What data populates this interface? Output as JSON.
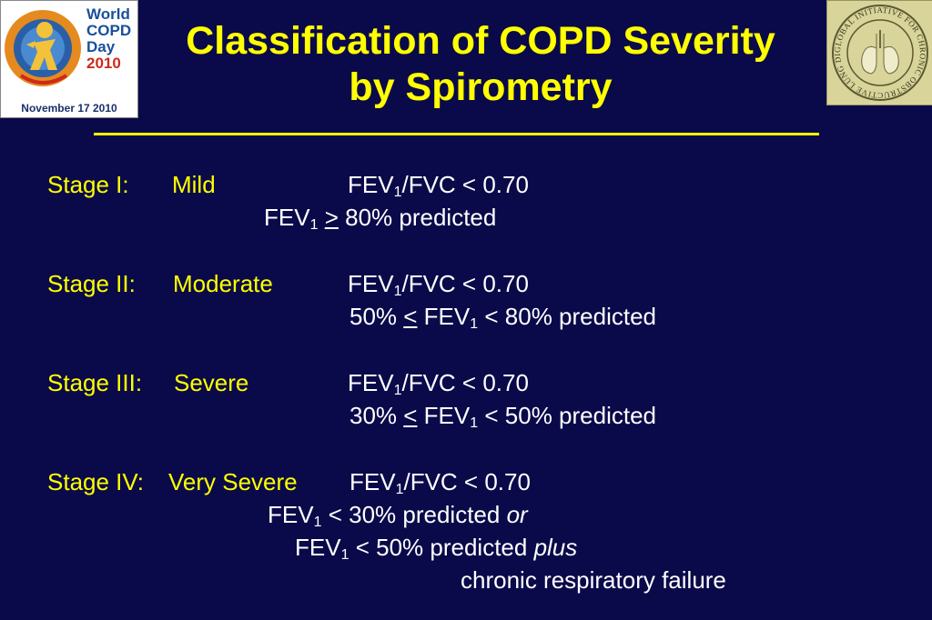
{
  "logo_left": {
    "line1": "World",
    "line2": "COPD",
    "line3": "Day",
    "year": "2010",
    "date": "November 17 2010"
  },
  "logo_right": {
    "ring_text": "GLOBAL INITIATIVE FOR CHRONIC OBSTRUCTIVE LUNG DISEASE"
  },
  "title": {
    "line1": "Classification of COPD Severity",
    "line2": "by Spirometry"
  },
  "stages": {
    "s1": {
      "label": "Stage I:",
      "severity": "Mild",
      "ratio": "FEV",
      "ratio_sub": "1",
      "ratio_rest": "/FVC < 0.70",
      "l2_a": "FEV",
      "l2_sub": "1",
      "l2_op": ">",
      "l2_rest": " 80% predicted"
    },
    "s2": {
      "label": "Stage II:",
      "severity": "Moderate",
      "ratio": "FEV",
      "ratio_sub": "1",
      "ratio_rest": "/FVC < 0.70",
      "l2_a": "50% ",
      "l2_op": "<",
      "l2_b": " FEV",
      "l2_sub": "1",
      "l2_rest": " < 80% predicted"
    },
    "s3": {
      "label": "Stage III:",
      "severity": "Severe",
      "ratio": "FEV",
      "ratio_sub": "1",
      "ratio_rest": "/FVC < 0.70",
      "l2_a": "30% ",
      "l2_op": "<",
      "l2_b": " FEV",
      "l2_sub": "1",
      "l2_rest": " < 50% predicted"
    },
    "s4": {
      "label": "Stage IV:",
      "severity": "Very Severe",
      "ratio": "FEV",
      "ratio_sub": "1",
      "ratio_rest": "/FVC < 0.70",
      "l2_a": "FEV",
      "l2_sub": "1",
      "l2_rest": " < 30% predicted ",
      "l2_em": "or",
      "l3_a": "FEV",
      "l3_sub": "1",
      "l3_rest": " < 50% predicted ",
      "l3_em": "plus",
      "l4": "chronic respiratory failure"
    }
  },
  "colors": {
    "background": "#0a0a4a",
    "accent": "#ffff00",
    "body_text": "#ffffff"
  }
}
